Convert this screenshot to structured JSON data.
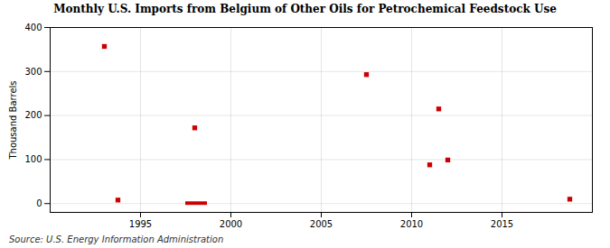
{
  "chart_data": {
    "type": "scatter",
    "title": "Monthly U.S. Imports from Belgium of Other Oils for Petrochemical Feedstock Use",
    "ylabel": "Thousand Barrels",
    "source": "Source: U.S. Energy Information Administration",
    "x": [
      1993.0,
      1993.75,
      1998.0,
      2007.5,
      2011.0,
      2011.5,
      2012.0,
      2018.75
    ],
    "values": [
      357,
      8,
      172,
      293,
      88,
      215,
      99,
      10
    ],
    "color": "#cc0000",
    "marker": "square",
    "bars": [
      {
        "x1": 1997.5,
        "x2": 1998.7,
        "y1": -4,
        "y2": 4
      }
    ],
    "xlim": [
      1990,
      2020
    ],
    "ylim": [
      -20,
      400
    ],
    "xticks": [
      1995,
      2000,
      2005,
      2010,
      2015
    ],
    "yticks": [
      0,
      100,
      200,
      300,
      400
    ],
    "grid": true
  }
}
